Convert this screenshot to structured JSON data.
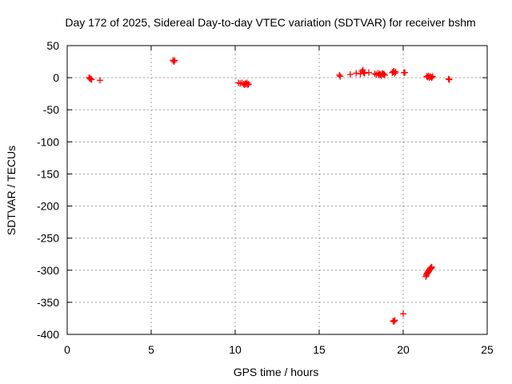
{
  "chart_data": {
    "type": "scatter",
    "title": "Day 172 of 2025, Sidereal Day-to-day VTEC variation (SDTVAR) for receiver bshm",
    "xlabel": "GPS time / hours",
    "ylabel": "SDTVAR / TECUs",
    "xlim": [
      0,
      25
    ],
    "ylim": [
      -400,
      50
    ],
    "xticks": [
      0,
      5,
      10,
      15,
      20,
      25
    ],
    "yticks": [
      50,
      0,
      -50,
      -100,
      -150,
      -200,
      -250,
      -300,
      -350,
      -400
    ],
    "grid": true,
    "marker": "plus",
    "marker_color": "#ff0000",
    "series": [
      {
        "name": "SDTVAR",
        "x": [
          1.3,
          1.35,
          1.4,
          1.45,
          1.95,
          6.3,
          6.35,
          6.4,
          10.2,
          10.3,
          10.4,
          10.5,
          10.55,
          10.6,
          10.65,
          10.7,
          10.75,
          10.8,
          16.2,
          16.25,
          16.85,
          17.2,
          17.45,
          17.55,
          17.6,
          17.65,
          17.7,
          17.95,
          18.3,
          18.4,
          18.5,
          18.55,
          18.6,
          18.65,
          18.7,
          18.75,
          18.8,
          18.85,
          18.9,
          19.35,
          19.4,
          19.45,
          19.5,
          19.55,
          20.05,
          20.1,
          21.4,
          21.45,
          21.5,
          21.55,
          21.6,
          21.65,
          21.7,
          21.75,
          22.7,
          22.75,
          21.35,
          21.38,
          21.4,
          21.42,
          21.45,
          21.48,
          21.5,
          21.52,
          21.55,
          21.58,
          21.6,
          21.62,
          21.65,
          21.68,
          21.7,
          19.4,
          19.45,
          19.5,
          20.0
        ],
        "y": [
          0,
          -1,
          -2,
          -3,
          -4,
          27,
          25,
          27,
          -8,
          -9,
          -8,
          -10,
          -11,
          -9,
          -10,
          -8,
          -11,
          -10,
          4,
          2,
          5,
          7,
          6,
          10,
          12,
          8,
          7,
          8,
          6,
          5,
          7,
          4,
          6,
          5,
          3,
          7,
          5,
          6,
          4,
          8,
          9,
          10,
          7,
          9,
          8,
          8,
          2,
          1,
          3,
          0,
          2,
          1,
          0,
          2,
          -2,
          -3,
          -310,
          -308,
          -306,
          -305,
          -304,
          -303,
          -302,
          -301,
          -300,
          -299,
          -298,
          -297,
          -296,
          -297,
          -295,
          -379,
          -380,
          -378,
          -368
        ]
      }
    ]
  }
}
